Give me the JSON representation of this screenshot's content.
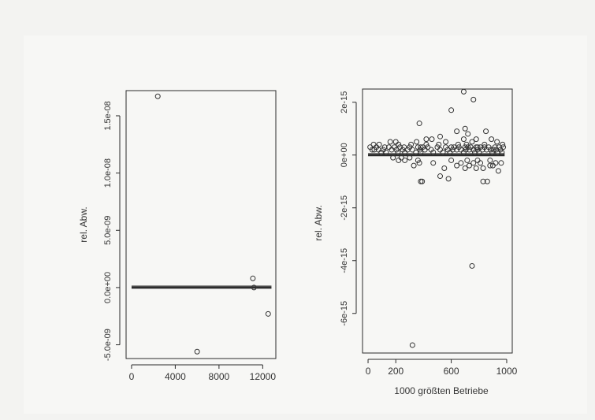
{
  "chart_data": [
    {
      "type": "scatter",
      "xlabel": "",
      "ylabel": "rel. Abw.",
      "xlim": [
        -500,
        13200
      ],
      "ylim": [
        -6.2e-09,
        1.72e-08
      ],
      "x_ticks": [
        0,
        4000,
        8000,
        12000
      ],
      "x_tick_labels": [
        "0",
        "4000",
        "8000",
        "12000"
      ],
      "y_ticks": [
        -5e-09,
        0,
        5e-09,
        1e-08,
        1.5e-08
      ],
      "y_tick_labels": [
        "-5.0e-09",
        "0.0e+00",
        "5.0e-09",
        "1.0e-08",
        "1.5e-08"
      ],
      "grid": false,
      "series": [
        {
          "x": [
            2400,
            6000,
            11100,
            11200,
            12500
          ],
          "y": [
            1.67e-08,
            -5.6e-09,
            8e-10,
            0,
            -2.3e-09
          ]
        }
      ],
      "zero_band": {
        "x": [
          0,
          12800
        ],
        "y": 0
      }
    },
    {
      "type": "scatter",
      "xlabel": "1000 größten Betriebe",
      "ylabel": "rel. Abw.",
      "xlim": [
        -40,
        1040
      ],
      "ylim": [
        -7.5e-15,
        2.5e-15
      ],
      "x_ticks": [
        0,
        200,
        600,
        1000
      ],
      "x_tick_labels": [
        "0",
        "200",
        "600",
        "1000"
      ],
      "y_ticks": [
        -6e-15,
        -4e-15,
        -2e-15,
        0,
        2e-15
      ],
      "y_tick_labels": [
        "-6e-15",
        "-4e-15",
        "-2e-15",
        "0e+00",
        "2e-15"
      ],
      "grid": false,
      "series": [
        {
          "x": [
            15,
            30,
            45,
            60,
            75,
            95,
            110,
            130,
            150,
            170,
            190,
            205,
            215,
            230,
            250,
            265,
            285,
            300,
            320,
            345,
            360,
            375,
            380,
            395,
            410,
            430,
            455,
            470,
            500,
            520,
            540,
            560,
            575,
            590,
            610,
            620,
            640,
            655,
            670,
            690,
            700,
            705,
            720,
            730,
            740,
            760,
            770,
            780,
            790,
            800,
            810,
            825,
            840,
            855,
            870,
            885,
            895,
            905,
            915,
            925,
            935,
            945,
            955,
            965,
            975,
            180,
            220,
            240,
            265,
            300,
            330,
            360,
            370,
            390,
            470,
            520,
            550,
            580,
            600,
            640,
            670,
            700,
            715,
            730,
            760,
            780,
            790,
            810,
            830,
            860,
            880,
            900,
            920,
            940,
            960,
            40,
            80,
            120,
            160,
            200,
            220,
            260,
            310,
            350,
            380,
            420,
            460,
            510,
            560,
            600,
            650,
            690,
            710,
            750,
            790,
            840,
            890,
            930,
            970
          ],
          "y": [
            3e-16,
            2e-16,
            2e-16,
            3e-16,
            2e-16,
            1e-16,
            2e-16,
            1e-16,
            3e-16,
            2e-16,
            3e-16,
            2e-16,
            1e-16,
            3e-16,
            2e-16,
            1e-16,
            2e-16,
            3e-16,
            2e-16,
            1e-16,
            3e-16,
            2e-16,
            1e-16,
            3e-16,
            2e-16,
            3e-16,
            2e-16,
            1e-16,
            3e-16,
            2e-16,
            1e-16,
            3e-16,
            2e-16,
            1e-16,
            2e-16,
            3e-16,
            2e-16,
            3e-16,
            2e-16,
            1e-16,
            3e-16,
            2e-16,
            3e-16,
            2e-16,
            3e-16,
            2e-16,
            1e-16,
            3e-16,
            2e-16,
            1e-16,
            3e-16,
            2e-16,
            3e-16,
            2e-16,
            3e-16,
            2e-16,
            1e-16,
            2e-16,
            3e-16,
            2e-16,
            1e-16,
            3e-16,
            2e-16,
            1e-16,
            3e-16,
            -1e-16,
            -2e-16,
            -1e-16,
            -2e-16,
            -1e-16,
            -4e-16,
            -2e-16,
            -3e-16,
            -1e-15,
            -3e-16,
            -8e-16,
            -5e-16,
            -9e-16,
            -2e-16,
            -4e-16,
            -3e-16,
            -5e-16,
            -2e-16,
            -4e-16,
            -3e-16,
            -5e-16,
            -2e-16,
            -3e-16,
            -5e-16,
            -1e-15,
            -2e-16,
            -4e-16,
            -3e-16,
            -6e-16,
            -3e-16,
            4e-16,
            4e-16,
            3e-16,
            5e-16,
            5e-16,
            4e-16,
            3e-16,
            4e-16,
            5e-16,
            3e-16,
            4e-16,
            6e-16,
            4e-16,
            5e-16,
            3e-16,
            4e-16,
            6e-16,
            4e-16,
            5e-16,
            3e-16,
            4e-16,
            6e-16,
            5e-16,
            4e-16
          ]
        },
        {
          "x": [
            320,
            370,
            380,
            420,
            520,
            600,
            640,
            690,
            700,
            720,
            750,
            760,
            780,
            830,
            850,
            880
          ],
          "y": [
            -7.2e-15,
            1.2e-15,
            -1e-15,
            6e-16,
            7e-16,
            1.7e-15,
            9e-16,
            2.4e-15,
            1e-15,
            8e-16,
            -4.2e-15,
            2.1e-15,
            6e-16,
            -1e-15,
            9e-16,
            -4e-16
          ]
        }
      ],
      "zero_band": {
        "x": [
          0,
          985
        ],
        "y": 0
      }
    }
  ]
}
